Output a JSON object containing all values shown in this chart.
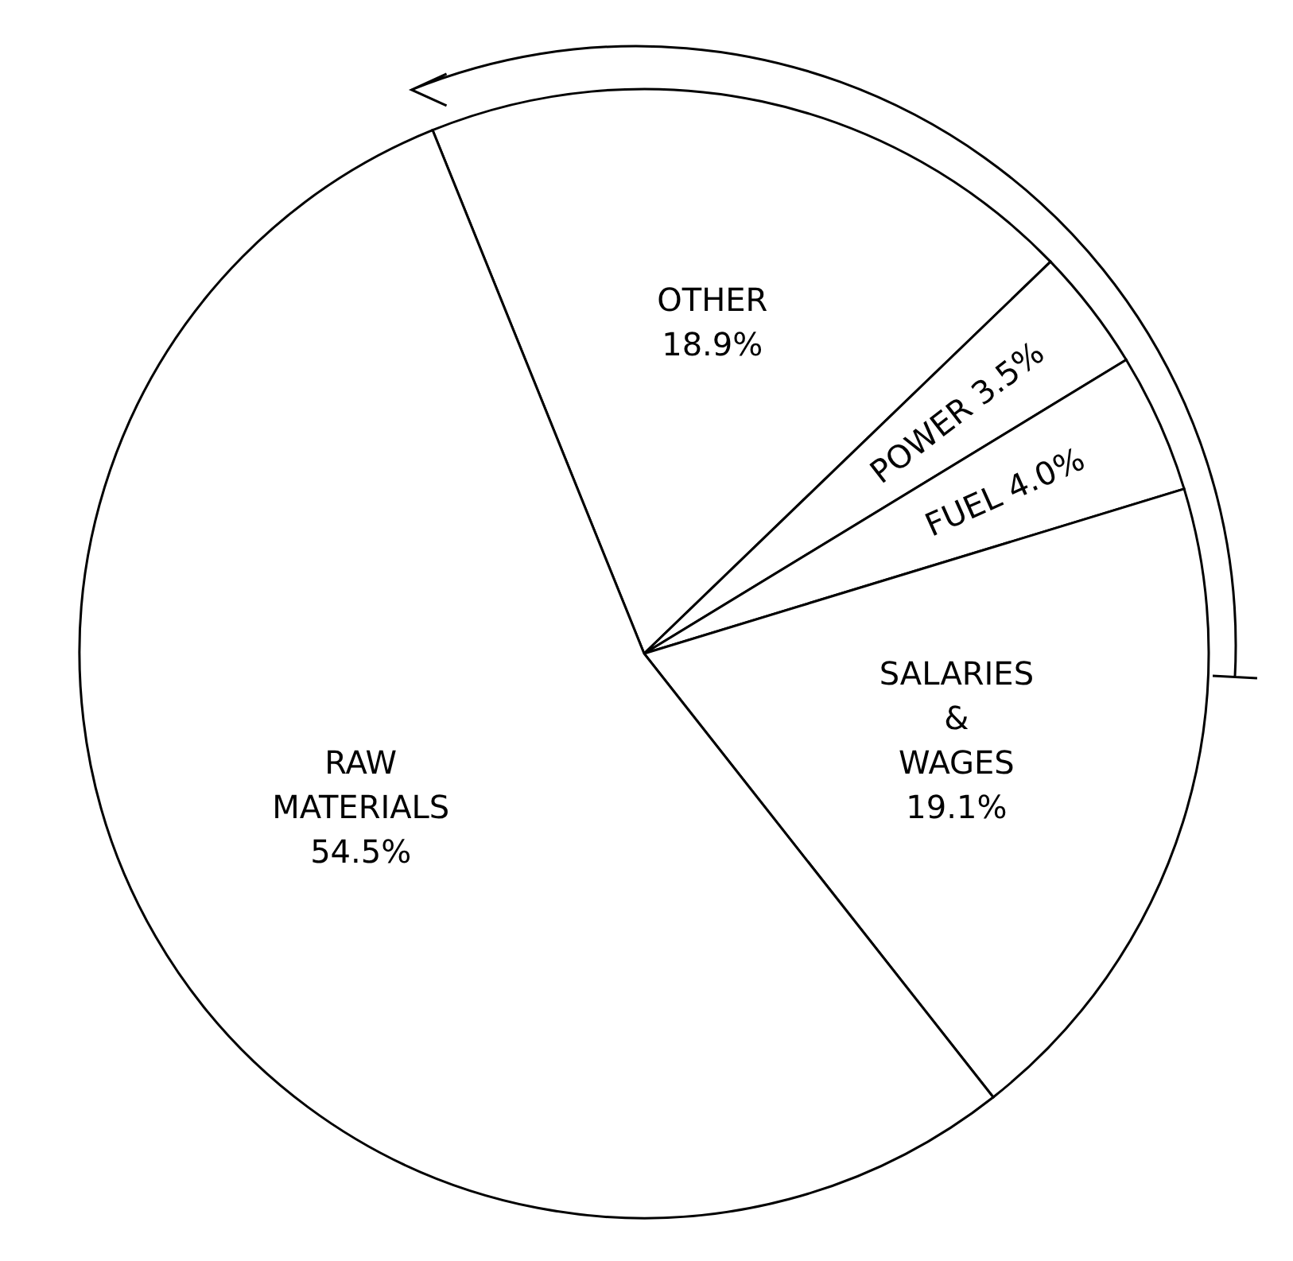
{
  "chart_data": {
    "type": "pie",
    "categories": [
      "OTHER",
      "POWER",
      "FUEL",
      "SALARIES & WAGES",
      "RAW MATERIALS"
    ],
    "values": [
      18.9,
      3.5,
      4.0,
      19.1,
      54.5
    ],
    "colors": [
      "#ffffff",
      "#ffffff",
      "#ffffff",
      "#ffffff",
      "#ffffff"
    ],
    "value_labels": [
      "18.9%",
      "3.5%",
      "4.0%",
      "19.1%",
      "54.5%"
    ],
    "legend": false
  }
}
